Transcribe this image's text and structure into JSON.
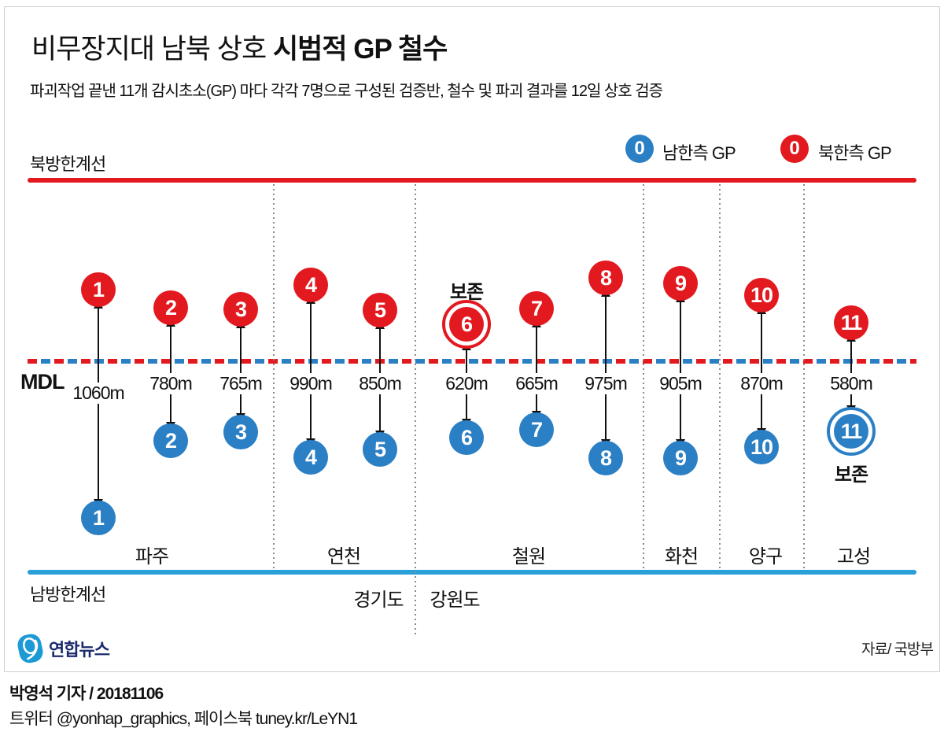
{
  "header": {
    "title_regular": "비무장지대 남북 상호 ",
    "title_bold": "시범적 GP 철수",
    "subtitle": "파괴작업 끝낸 11개 감시초소(GP) 마다 각각 7명으로 구성된 검증반, 철수 및 파괴 결과를 12일 상호 검증"
  },
  "legend": {
    "badge_number": "0",
    "south_label": "남한측 GP",
    "north_label": "북한측 GP"
  },
  "boundary_lines": {
    "north_limit_label": "북방한계선",
    "mdl_label": "MDL",
    "south_limit_label": "남방한계선"
  },
  "preserved_label": "보존",
  "gps": [
    {
      "number": "1",
      "distance": "1060m",
      "preserved": null
    },
    {
      "number": "2",
      "distance": "780m",
      "preserved": null
    },
    {
      "number": "3",
      "distance": "765m",
      "preserved": null
    },
    {
      "number": "4",
      "distance": "990m",
      "preserved": null
    },
    {
      "number": "5",
      "distance": "850m",
      "preserved": null
    },
    {
      "number": "6",
      "distance": "620m",
      "preserved": "north"
    },
    {
      "number": "7",
      "distance": "665m",
      "preserved": null
    },
    {
      "number": "8",
      "distance": "975m",
      "preserved": null
    },
    {
      "number": "9",
      "distance": "905m",
      "preserved": null
    },
    {
      "number": "10",
      "distance": "870m",
      "preserved": null
    },
    {
      "number": "11",
      "distance": "580m",
      "preserved": "south"
    }
  ],
  "regions": [
    "파주",
    "연천",
    "철원",
    "화천",
    "양구",
    "고성"
  ],
  "provinces": [
    "경기도",
    "강원도"
  ],
  "footer": {
    "logo_text": "연합뉴스",
    "source": "자료/ 국방부",
    "credit_line1": "박영석 기자 / 20181106",
    "credit_line2": "트위터 @yonhap_graphics, 페이스북 tuney.kr/LeYN1"
  },
  "colors": {
    "north_red": "#e2191f",
    "south_blue": "#2b7fc4",
    "south_line_blue": "#29a0d8",
    "logo_blue": "#1b9ad6",
    "logo_navy": "#1b2a6e"
  }
}
